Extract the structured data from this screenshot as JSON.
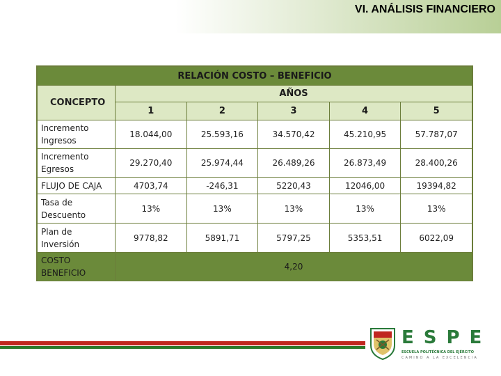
{
  "slide": {
    "title": "VI. ANÁLISIS FINANCIERO"
  },
  "table": {
    "title": "RELACIÓN COSTO – BENEFICIO",
    "concept_header": "CONCEPTO",
    "years_header": "AÑOS",
    "years": [
      "1",
      "2",
      "3",
      "4",
      "5"
    ],
    "rows": [
      {
        "label": [
          "Incremento",
          "Ingresos"
        ],
        "values": [
          "18.044,00",
          "25.593,16",
          "34.570,42",
          "45.210,95",
          "57.787,07"
        ]
      },
      {
        "label": [
          "Incremento",
          "Egresos"
        ],
        "values": [
          "29.270,40",
          "25.974,44",
          "26.489,26",
          "26.873,49",
          "28.400,26"
        ]
      },
      {
        "label": [
          "FLUJO DE CAJA"
        ],
        "values": [
          "4703,74",
          "-246,31",
          "5220,43",
          "12046,00",
          "19394,82"
        ]
      },
      {
        "label": [
          "Tasa de",
          "Descuento"
        ],
        "values": [
          "13%",
          "13%",
          "13%",
          "13%",
          "13%"
        ]
      },
      {
        "label": [
          "Plan de",
          "Inversión"
        ],
        "values": [
          "9778,82",
          "5891,71",
          "5797,25",
          "5353,51",
          "6022,09"
        ]
      }
    ],
    "footer": {
      "label": [
        "COSTO",
        "BENEFICIO"
      ],
      "value": "4,20"
    }
  },
  "logo": {
    "letters": "ESPE",
    "subtitle": "ESCUELA POLITÉCNICA DEL EJÉRCITO",
    "tagline": "CAMINO A LA EXCELENCIA",
    "colors": {
      "green": "#2a7a3a",
      "red": "#c0271f"
    }
  }
}
